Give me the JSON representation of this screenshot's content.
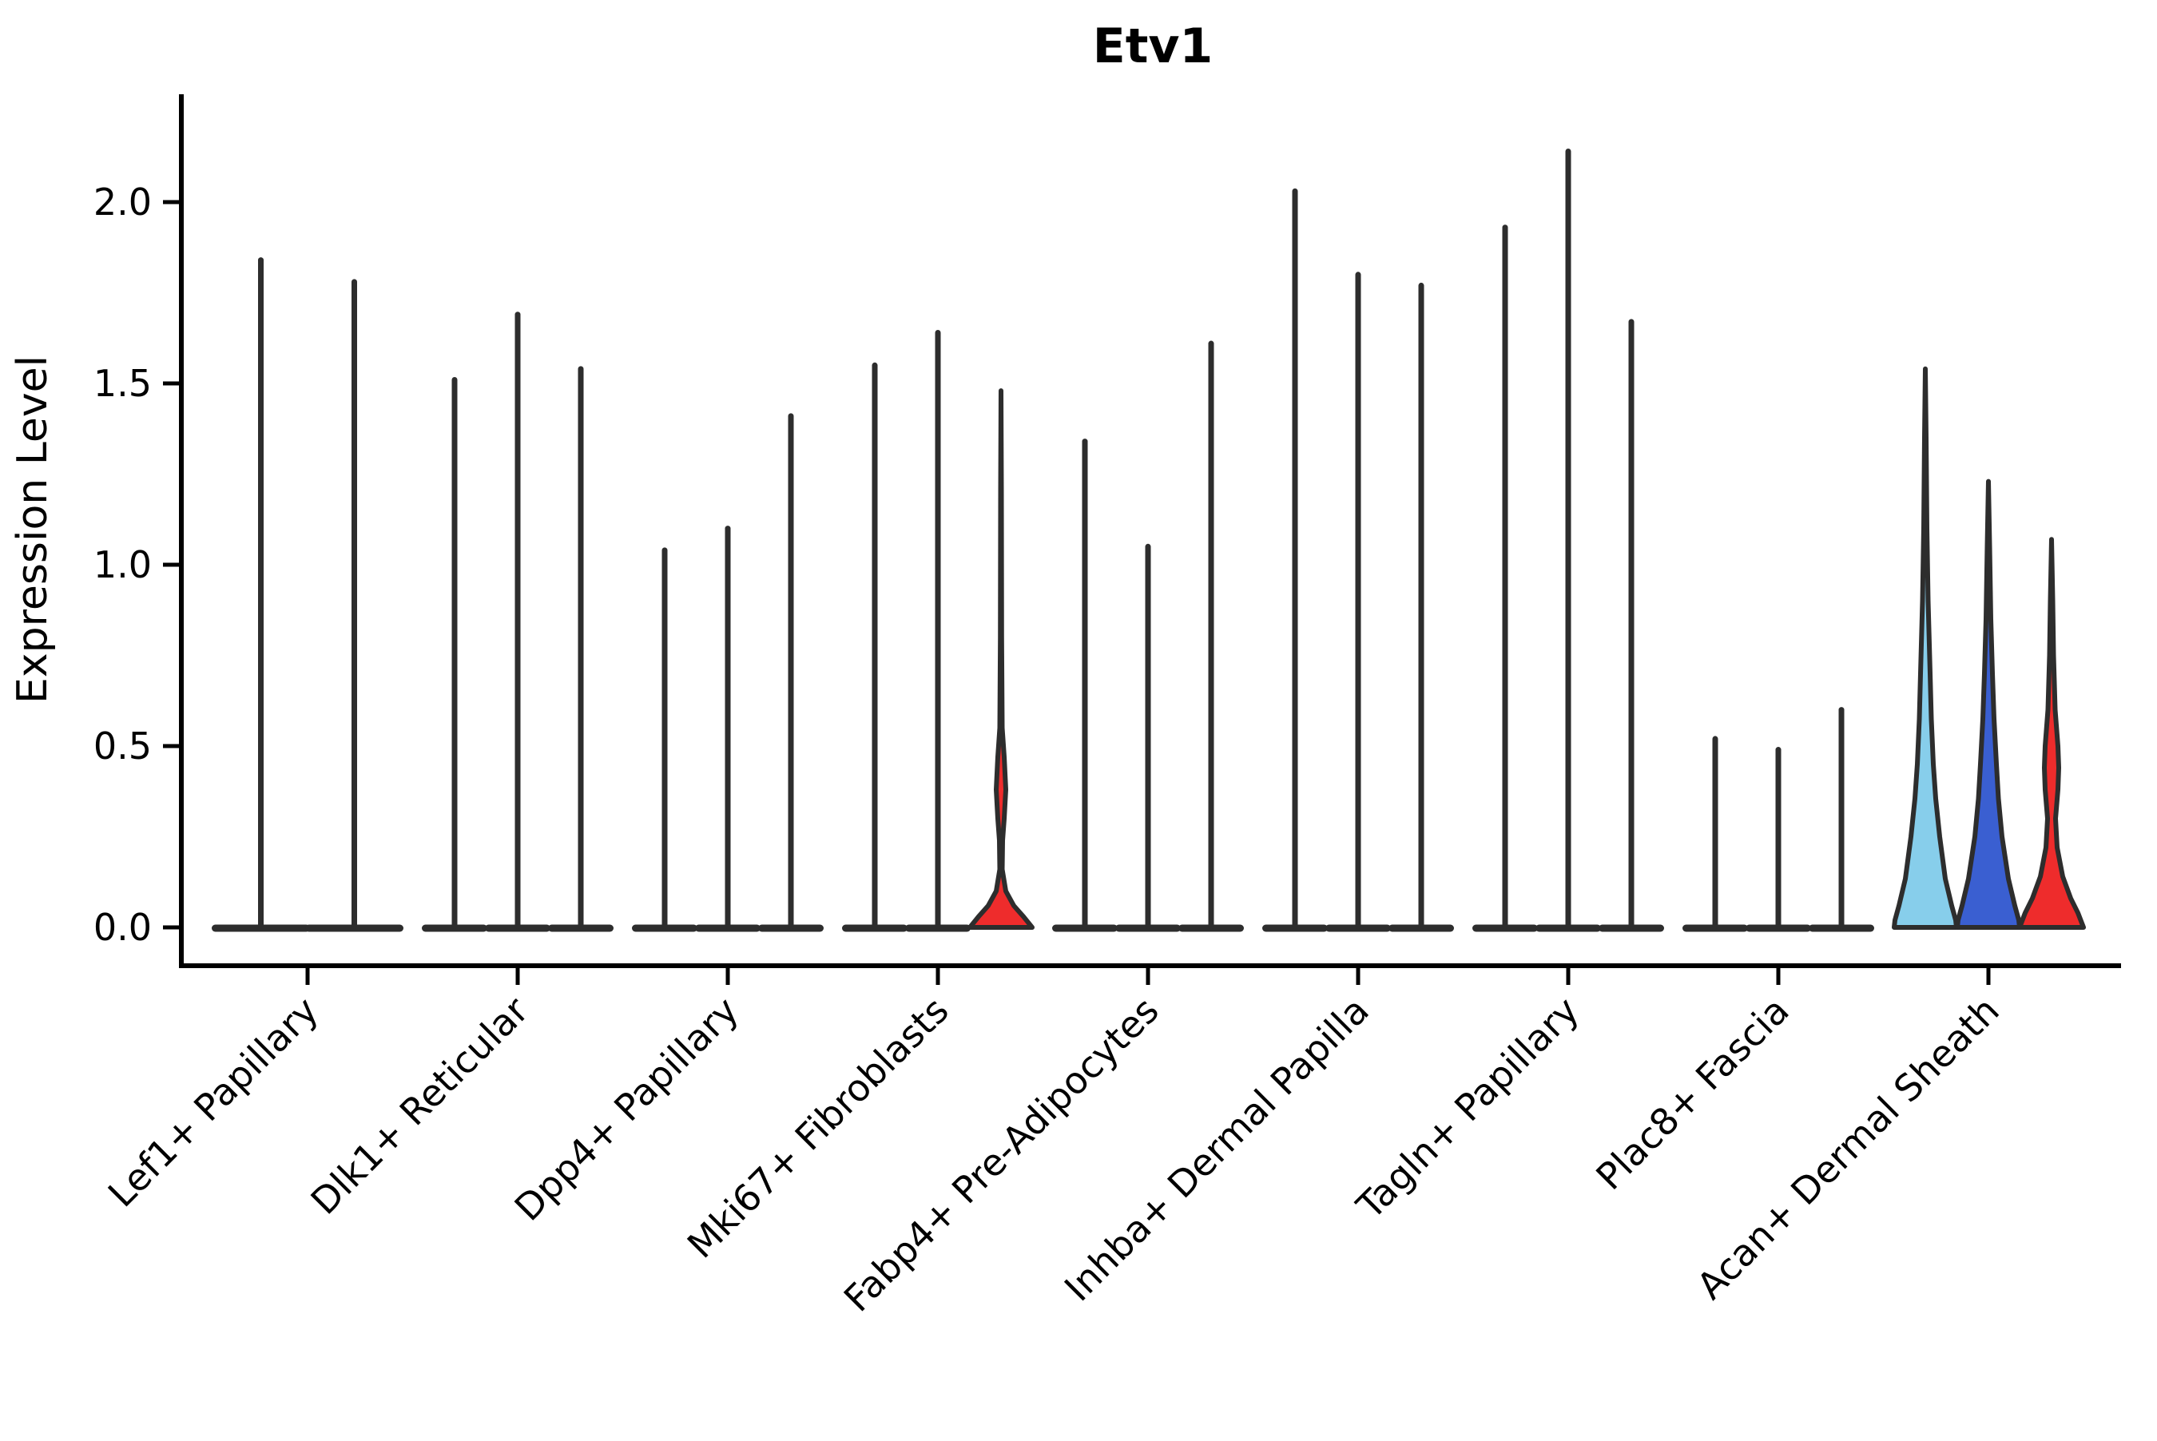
{
  "title": "Etv1",
  "ylabel": "Expression Level",
  "colors": {
    "violin_outline": "#2d2d2d",
    "axis": "#000000",
    "lightblue": "#87CEEB",
    "blue": "#3A5FD1",
    "red": "#EE2C2C"
  },
  "chart_data": {
    "type": "violin",
    "title": "Etv1",
    "xlabel": "",
    "ylabel": "Expression Level",
    "ylim": [
      0,
      2.3
    ],
    "yticks": [
      "0.0",
      "0.5",
      "1.0",
      "1.5",
      "2.0"
    ],
    "ytick_values": [
      0.0,
      0.5,
      1.0,
      1.5,
      2.0
    ],
    "grid": false,
    "legend": "none",
    "categories": [
      "Lef1+ Papillary",
      "Dlk1+ Reticular",
      "Dpp4+ Papillary",
      "Mki67+ Fibroblasts",
      "Fabp4+ Pre-Adipocytes",
      "Inhba+ Dermal Papilla",
      "Tagln+ Papillary",
      "Plac8+ Fascia",
      "Acan+ Dermal Sheath"
    ],
    "groups": [
      {
        "category": "Lef1+ Papillary",
        "violins": [
          {
            "peak": 1.84,
            "color": null,
            "profile": null
          },
          {
            "peak": 1.78,
            "color": null,
            "profile": null
          }
        ]
      },
      {
        "category": "Dlk1+ Reticular",
        "violins": [
          {
            "peak": 1.51,
            "color": null,
            "profile": null
          },
          {
            "peak": 1.69,
            "color": null,
            "profile": null
          },
          {
            "peak": 1.54,
            "color": null,
            "profile": null
          }
        ]
      },
      {
        "category": "Dpp4+ Papillary",
        "violins": [
          {
            "peak": 1.04,
            "color": null,
            "profile": null
          },
          {
            "peak": 1.1,
            "color": null,
            "profile": null
          },
          {
            "peak": 1.41,
            "color": null,
            "profile": null
          }
        ]
      },
      {
        "category": "Mki67+ Fibroblasts",
        "violins": [
          {
            "peak": 1.55,
            "color": null,
            "profile": null
          },
          {
            "peak": 1.64,
            "color": null,
            "profile": null
          },
          {
            "peak": 1.48,
            "color": "red",
            "profile": "mki67_red"
          }
        ]
      },
      {
        "category": "Fabp4+ Pre-Adipocytes",
        "violins": [
          {
            "peak": 1.34,
            "color": null,
            "profile": null
          },
          {
            "peak": 1.05,
            "color": null,
            "profile": null
          },
          {
            "peak": 1.61,
            "color": null,
            "profile": null
          }
        ]
      },
      {
        "category": "Inhba+ Dermal Papilla",
        "violins": [
          {
            "peak": 2.03,
            "color": null,
            "profile": null
          },
          {
            "peak": 1.8,
            "color": null,
            "profile": null
          },
          {
            "peak": 1.77,
            "color": null,
            "profile": null
          }
        ]
      },
      {
        "category": "Tagln+ Papillary",
        "violins": [
          {
            "peak": 1.93,
            "color": null,
            "profile": null
          },
          {
            "peak": 2.14,
            "color": null,
            "profile": null
          },
          {
            "peak": 1.67,
            "color": null,
            "profile": null
          }
        ]
      },
      {
        "category": "Plac8+ Fascia",
        "violins": [
          {
            "peak": 0.52,
            "color": null,
            "profile": null
          },
          {
            "peak": 0.49,
            "color": null,
            "profile": null
          },
          {
            "peak": 0.6,
            "color": null,
            "profile": null
          }
        ]
      },
      {
        "category": "Acan+ Dermal Sheath",
        "violins": [
          {
            "peak": 1.54,
            "color": "lightblue",
            "profile": "acan_lightblue"
          },
          {
            "peak": 1.23,
            "color": "blue",
            "profile": "acan_blue"
          },
          {
            "peak": 1.07,
            "color": "red",
            "profile": "acan_red"
          }
        ]
      }
    ],
    "profiles": {
      "acan_lightblue": [
        [
          1.35,
          1
        ],
        [
          1.1,
          2
        ],
        [
          0.9,
          3.5
        ],
        [
          0.7,
          6
        ],
        [
          0.575,
          7.5
        ],
        [
          0.45,
          10
        ],
        [
          0.355,
          13
        ],
        [
          0.25,
          18
        ],
        [
          0.134,
          25
        ],
        [
          0.06,
          33
        ],
        [
          0.02,
          38
        ],
        [
          0,
          39
        ]
      ],
      "acan_blue": [
        [
          1.05,
          1.5
        ],
        [
          0.85,
          3
        ],
        [
          0.7,
          5
        ],
        [
          0.575,
          7
        ],
        [
          0.45,
          10
        ],
        [
          0.355,
          12.5
        ],
        [
          0.25,
          17
        ],
        [
          0.134,
          25
        ],
        [
          0.06,
          33
        ],
        [
          0.02,
          38
        ],
        [
          0,
          39
        ]
      ],
      "acan_red": [
        [
          0.9,
          1.5
        ],
        [
          0.75,
          2.5
        ],
        [
          0.6,
          4.5
        ],
        [
          0.5,
          8
        ],
        [
          0.44,
          9
        ],
        [
          0.38,
          8
        ],
        [
          0.3,
          5
        ],
        [
          0.22,
          7
        ],
        [
          0.14,
          14
        ],
        [
          0.08,
          24
        ],
        [
          0.04,
          33
        ],
        [
          0,
          40
        ]
      ],
      "mki67_red": [
        [
          1.2,
          0.5
        ],
        [
          0.8,
          0.8
        ],
        [
          0.55,
          1.5
        ],
        [
          0.47,
          4
        ],
        [
          0.38,
          6
        ],
        [
          0.3,
          4
        ],
        [
          0.24,
          2
        ],
        [
          0.16,
          1.5
        ],
        [
          0.1,
          6
        ],
        [
          0.06,
          16
        ],
        [
          0.03,
          28
        ],
        [
          0,
          39
        ]
      ]
    }
  }
}
